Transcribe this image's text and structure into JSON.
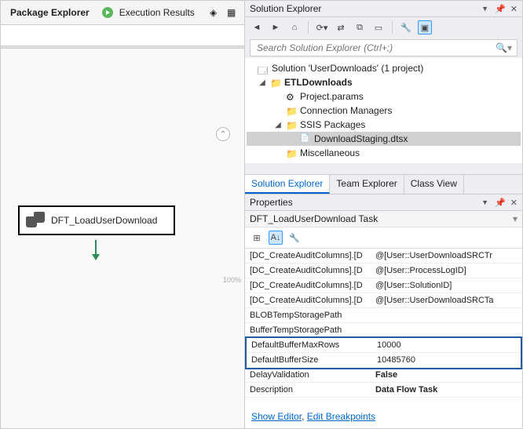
{
  "left": {
    "tabs": {
      "package": "Package Explorer",
      "exec": "Execution Results"
    },
    "task_label": "DFT_LoadUserDownload",
    "zoom": "100%"
  },
  "solution_explorer": {
    "title": "Solution Explorer",
    "search_placeholder": "Search Solution Explorer (Ctrl+;)",
    "tree": {
      "root": "Solution 'UserDownloads' (1 project)",
      "project": "ETLDownloads",
      "items": {
        "params": "Project.params",
        "conns": "Connection Managers",
        "ssis_folder": "SSIS Packages",
        "pkg": "DownloadStaging.dtsx",
        "misc": "Miscellaneous"
      }
    },
    "tabs": {
      "se": "Solution Explorer",
      "te": "Team Explorer",
      "cv": "Class View"
    }
  },
  "properties": {
    "title": "Properties",
    "object": "DFT_LoadUserDownload Task",
    "rows": [
      {
        "name": "[DC_CreateAuditColumns].[D",
        "value": "@[User::UserDownloadSRCTr"
      },
      {
        "name": "[DC_CreateAuditColumns].[D",
        "value": "@[User::ProcessLogID]"
      },
      {
        "name": "[DC_CreateAuditColumns].[D",
        "value": "@[User::SolutionID]"
      },
      {
        "name": "[DC_CreateAuditColumns].[D",
        "value": "@[User::UserDownloadSRCTa"
      },
      {
        "name": "BLOBTempStoragePath",
        "value": ""
      },
      {
        "name": "BufferTempStoragePath",
        "value": ""
      },
      {
        "name": "DefaultBufferMaxRows",
        "value": "10000",
        "hl": true
      },
      {
        "name": "DefaultBufferSize",
        "value": "10485760",
        "hl": true
      },
      {
        "name": "DelayValidation",
        "value": "False",
        "bold": true
      },
      {
        "name": "Description",
        "value": "Data Flow Task",
        "bold": true
      }
    ],
    "links": {
      "show": "Show Editor",
      "edit": "Edit Breakpoints"
    }
  }
}
